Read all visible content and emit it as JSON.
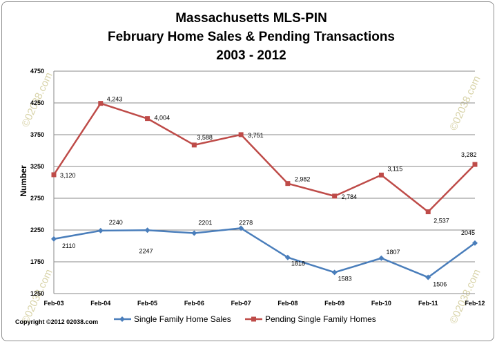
{
  "chart_data": {
    "type": "line",
    "title_lines": [
      "Massachusetts MLS-PIN",
      "February Home Sales & Pending Transactions",
      "2003 - 2012"
    ],
    "ylabel": "Number",
    "xlabel": "",
    "categories": [
      "Feb-03",
      "Feb-04",
      "Feb-05",
      "Feb-06",
      "Feb-07",
      "Feb-08",
      "Feb-09",
      "Feb-10",
      "Feb-11",
      "Feb-12"
    ],
    "ylim": [
      1250,
      4750
    ],
    "yticks": [
      "1250",
      "1750",
      "2250",
      "2750",
      "3250",
      "3750",
      "4250",
      "4750"
    ],
    "grid": true,
    "legend_position": "bottom",
    "series": [
      {
        "name": "Single Family Home Sales",
        "values": [
          2110,
          2240,
          2247,
          2201,
          2278,
          1818,
          1583,
          1807,
          1506,
          2045
        ],
        "labels": [
          "2110",
          "2240",
          "2247",
          "2201",
          "2278",
          "1818",
          "1583",
          "1807",
          "1506",
          "2045"
        ],
        "color": "#4a7ebb",
        "marker": "diamond"
      },
      {
        "name": "Pending Single Family Homes",
        "values": [
          3120,
          4243,
          4004,
          3588,
          3751,
          2982,
          2784,
          3115,
          2537,
          3282
        ],
        "labels": [
          "3,120",
          "4,243",
          "4,004",
          "3,588",
          "3,751",
          "2,982",
          "2,784",
          "3,115",
          "2,537",
          "3,282"
        ],
        "color": "#be4b48",
        "marker": "square"
      }
    ]
  },
  "copyright": "Copyright  ©2012 02038.com",
  "watermark": "©02038.com"
}
